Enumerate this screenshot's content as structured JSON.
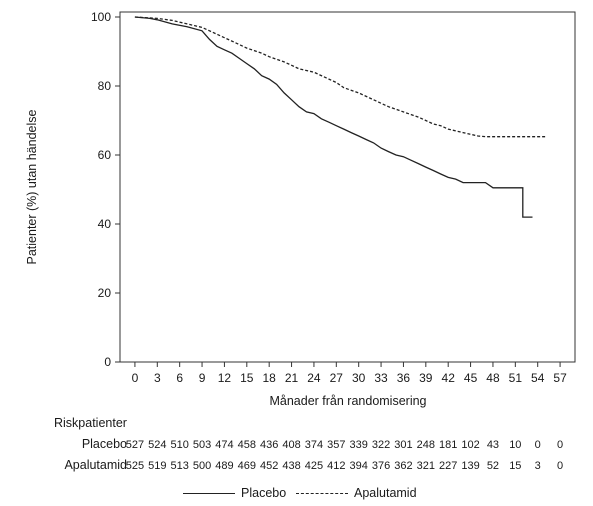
{
  "chart_data": {
    "type": "line",
    "xlabel": "Månader från randomisering",
    "ylabel": "Patienter (%) utan händelse",
    "xlim": [
      -2,
      59
    ],
    "ylim": [
      0,
      100
    ],
    "x_ticks": [
      0,
      3,
      6,
      9,
      12,
      15,
      18,
      21,
      24,
      27,
      30,
      33,
      36,
      39,
      42,
      45,
      48,
      51,
      54,
      57
    ],
    "y_ticks": [
      0,
      20,
      40,
      60,
      80,
      100
    ],
    "series": [
      {
        "name": "Placebo",
        "style": "solid",
        "color": "#222222",
        "points": [
          [
            0,
            100
          ],
          [
            2,
            99.6
          ],
          [
            3,
            99.2
          ],
          [
            5,
            98
          ],
          [
            7,
            97.2
          ],
          [
            9,
            96
          ],
          [
            10,
            93.5
          ],
          [
            11,
            91.5
          ],
          [
            12,
            90.5
          ],
          [
            13,
            89.5
          ],
          [
            14,
            88
          ],
          [
            15,
            86.5
          ],
          [
            16,
            85
          ],
          [
            17,
            83
          ],
          [
            18,
            82
          ],
          [
            19,
            80.5
          ],
          [
            20,
            78
          ],
          [
            21,
            76
          ],
          [
            22,
            74
          ],
          [
            23,
            72.5
          ],
          [
            24,
            72
          ],
          [
            25,
            70.5
          ],
          [
            26,
            69.5
          ],
          [
            27,
            68.5
          ],
          [
            28,
            67.5
          ],
          [
            29,
            66.5
          ],
          [
            30,
            65.5
          ],
          [
            31,
            64.5
          ],
          [
            32,
            63.5
          ],
          [
            33,
            62
          ],
          [
            34,
            61
          ],
          [
            35,
            60
          ],
          [
            36,
            59.5
          ],
          [
            37,
            58.5
          ],
          [
            38,
            57.5
          ],
          [
            39,
            56.5
          ],
          [
            40,
            55.5
          ],
          [
            41,
            54.5
          ],
          [
            42,
            53.5
          ],
          [
            43,
            53
          ],
          [
            44,
            52
          ],
          [
            45,
            52
          ],
          [
            47,
            52
          ],
          [
            48,
            50.5
          ],
          [
            52,
            50.5
          ],
          [
            52,
            42
          ],
          [
            53.3,
            42
          ]
        ]
      },
      {
        "name": "Apalutamid",
        "style": "dashed",
        "color": "#222222",
        "points": [
          [
            0,
            100
          ],
          [
            3,
            99.6
          ],
          [
            5,
            99
          ],
          [
            7,
            98
          ],
          [
            9,
            97
          ],
          [
            10,
            96
          ],
          [
            12,
            94
          ],
          [
            13,
            93
          ],
          [
            15,
            91
          ],
          [
            17,
            89.5
          ],
          [
            18,
            88.5
          ],
          [
            20,
            87
          ],
          [
            21,
            86
          ],
          [
            22,
            85
          ],
          [
            24,
            84
          ],
          [
            26,
            82
          ],
          [
            27,
            81
          ],
          [
            28,
            79.5
          ],
          [
            30,
            78
          ],
          [
            32,
            76
          ],
          [
            33,
            75
          ],
          [
            34,
            74
          ],
          [
            36,
            72.5
          ],
          [
            38,
            71
          ],
          [
            39,
            70
          ],
          [
            40,
            69
          ],
          [
            41,
            68.5
          ],
          [
            42,
            67.5
          ],
          [
            44,
            66.5
          ],
          [
            45,
            66
          ],
          [
            46,
            65.5
          ],
          [
            47,
            65.3
          ],
          [
            50,
            65.3
          ],
          [
            55,
            65.3
          ]
        ]
      }
    ]
  },
  "risk_table": {
    "title": "Riskpatienter",
    "rows": [
      {
        "label": "Placebo",
        "values": [
          "527",
          "524",
          "510",
          "503",
          "474",
          "458",
          "436",
          "408",
          "374",
          "357",
          "339",
          "322",
          "301",
          "248",
          "181",
          "102",
          "43",
          "10",
          "0",
          "0"
        ]
      },
      {
        "label": "Apalutamid",
        "values": [
          "525",
          "519",
          "513",
          "500",
          "489",
          "469",
          "452",
          "438",
          "425",
          "412",
          "394",
          "376",
          "362",
          "321",
          "227",
          "139",
          "52",
          "15",
          "3",
          "0"
        ]
      }
    ]
  },
  "legend": {
    "placebo": "Placebo",
    "apalutamid": "Apalutamid"
  }
}
